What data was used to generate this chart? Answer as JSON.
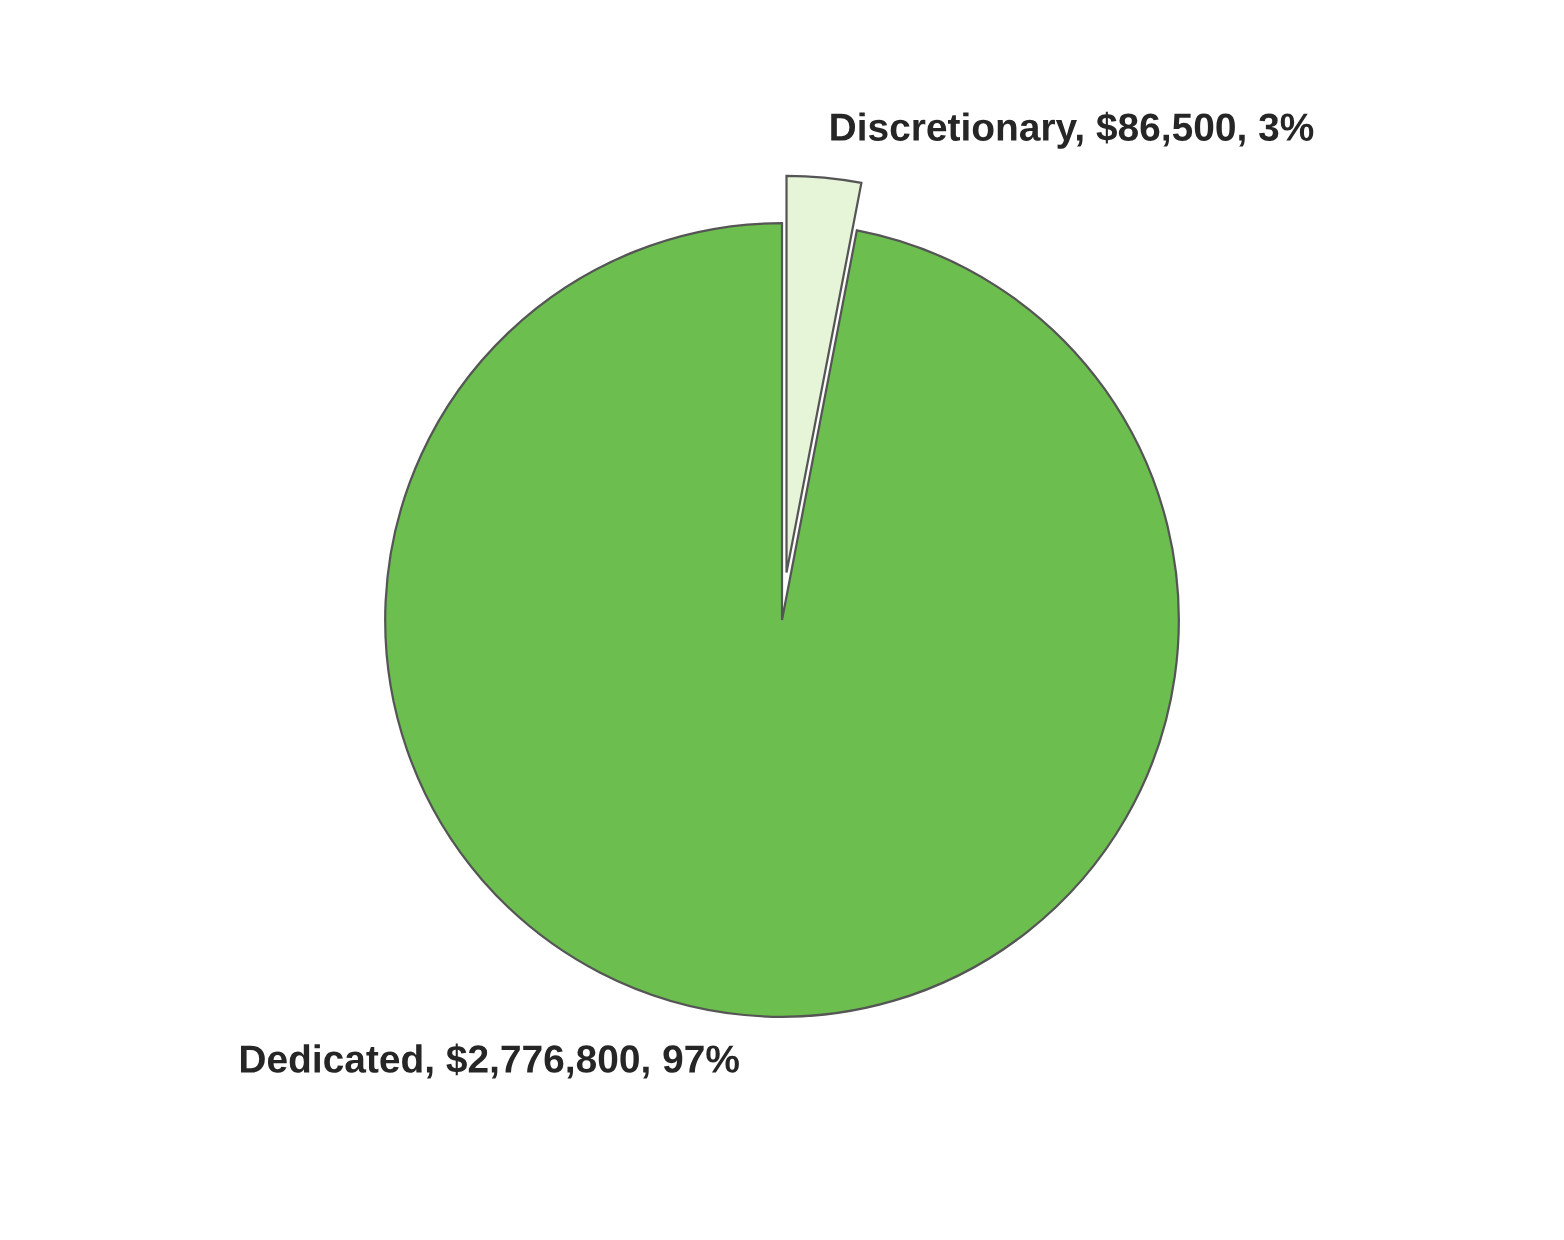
{
  "chart_data": {
    "type": "pie",
    "categories": [
      "Discretionary",
      "Dedicated"
    ],
    "values": [
      86500,
      2776800
    ],
    "value_labels": [
      "$86,500, 3%",
      "$2,776,800, 97%"
    ],
    "colors": [
      "#e6f5d8",
      "#6cbf4f"
    ]
  }
}
